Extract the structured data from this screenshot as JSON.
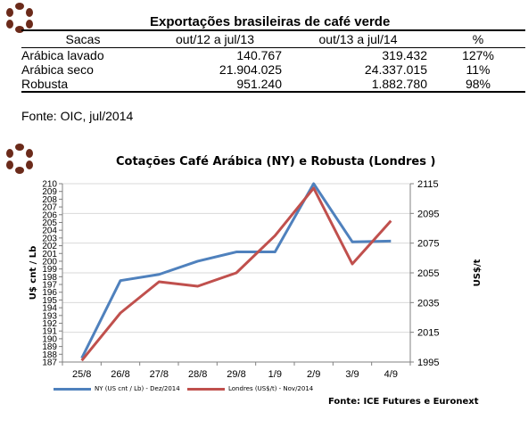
{
  "table": {
    "title": "Exportações brasileiras de café verde",
    "headers": [
      "Sacas",
      "out/12 a jul/13",
      "out/13 a jul/14",
      "%"
    ],
    "rows": [
      {
        "label": "Arábica lavado",
        "v1": "140.767",
        "v2": "319.432",
        "pct": "127%"
      },
      {
        "label": "Arábica seco",
        "v1": "21.904.025",
        "v2": "24.337.015",
        "pct": "11%"
      },
      {
        "label": "Robusta",
        "v1": "951.240",
        "v2": "1.882.780",
        "pct": "98%"
      }
    ],
    "source": "Fonte: OIC, jul/2014"
  },
  "colors": {
    "ny_line": "#4f81bd",
    "london_line": "#c0504d",
    "grid": "#d9d9d9",
    "axis": "#808080",
    "logo": "#6b2a1a"
  },
  "logo_icon": "coffee-beans-logo",
  "chart_data": {
    "type": "line",
    "title": "Cotações Café Arábica (NY) e Robusta (Londres )",
    "categories": [
      "25/8",
      "26/8",
      "27/8",
      "28/8",
      "29/8",
      "1/9",
      "2/9",
      "3/9",
      "4/9"
    ],
    "ylabel": "U$ cnt / Lb",
    "y2label": "US$/t",
    "ylim": [
      187,
      210
    ],
    "y2lim": [
      1995,
      2115
    ],
    "y_ticks": [
      "187",
      "188",
      "189",
      "190",
      "191",
      "192",
      "193",
      "194",
      "195",
      "196",
      "197",
      "198",
      "199",
      "200",
      "201",
      "202",
      "203",
      "204",
      "205",
      "206",
      "207",
      "208",
      "209",
      "210"
    ],
    "y2_ticks": [
      "1995",
      "2015",
      "2035",
      "2055",
      "2075",
      "2095",
      "2115"
    ],
    "grid": true,
    "legend_position": "bottom-left",
    "series": [
      {
        "name": "NY (US cnt / Lb) - Dez/2014",
        "axis": "left",
        "values": [
          187.5,
          197.5,
          198.3,
          200.0,
          201.2,
          201.2,
          210.0,
          202.5,
          202.6
        ]
      },
      {
        "name": "Londres (US$/t) - Nov/2014",
        "axis": "right",
        "values": [
          1996,
          2028,
          2049,
          2046,
          2055,
          2080,
          2112,
          2061,
          2090
        ]
      }
    ],
    "source": "Fonte: ICE Futures e Euronext"
  }
}
